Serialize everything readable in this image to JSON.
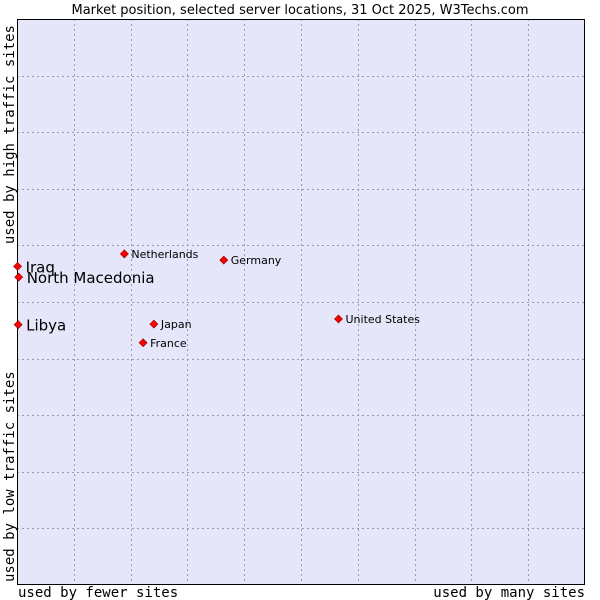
{
  "chart_data": {
    "type": "scatter",
    "title": "Market position, selected server locations, 31 Oct 2025, W3Techs.com",
    "xlabel_left": "used by fewer sites",
    "xlabel_right": "used by many sites",
    "ylabel_bottom": "used by low traffic sites",
    "ylabel_top": "used by high traffic sites",
    "xlim": [
      0,
      100
    ],
    "ylim": [
      0,
      100
    ],
    "grid": true,
    "colors": {
      "plot_bg": "#e6e6fa",
      "border": "#000000",
      "grid": "#9a9ab4",
      "marker": "#ff0000",
      "marker_edge": "#8b0000"
    },
    "points": [
      {
        "name": "Iraq",
        "x": 0.1,
        "y": 56.3,
        "emphasis": true
      },
      {
        "name": "North Macedonia",
        "x": 0.3,
        "y": 54.4,
        "emphasis": true
      },
      {
        "name": "Libya",
        "x": 0.2,
        "y": 46.0,
        "emphasis": true
      },
      {
        "name": "Netherlands",
        "x": 18.9,
        "y": 58.5,
        "emphasis": false
      },
      {
        "name": "Germany",
        "x": 36.4,
        "y": 57.4,
        "emphasis": false
      },
      {
        "name": "United States",
        "x": 56.6,
        "y": 47.0,
        "emphasis": false
      },
      {
        "name": "Japan",
        "x": 24.1,
        "y": 46.1,
        "emphasis": false
      },
      {
        "name": "France",
        "x": 22.2,
        "y": 42.8,
        "emphasis": false
      }
    ]
  }
}
